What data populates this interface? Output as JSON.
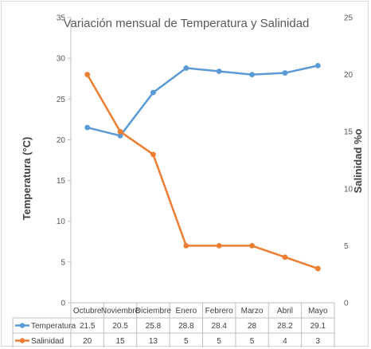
{
  "chart_data": {
    "type": "line",
    "title": "Variación mensual de Temperatura y Salinidad",
    "categories": [
      "Octubre",
      "Noviembre",
      "Diciembre",
      "Enero",
      "Febrero",
      "Marzo",
      "Abril",
      "Mayo"
    ],
    "ylabel": "Temperatura (°C)",
    "y2label": "Salinidad %o",
    "ylim": [
      0,
      35
    ],
    "yticks": [
      0,
      5,
      10,
      15,
      20,
      25,
      30,
      35
    ],
    "y2lim": [
      0,
      25
    ],
    "y2ticks": [
      0,
      5,
      10,
      15,
      20,
      25
    ],
    "grid": false,
    "legend": "data-table",
    "series": [
      {
        "name": "Temperatura",
        "axis": "left",
        "color": "#5b9bd5",
        "values": [
          21.5,
          20.5,
          25.8,
          28.8,
          28.4,
          28,
          28.2,
          29.1
        ],
        "labels": [
          "21.5",
          "20.5",
          "25.8",
          "28.8",
          "28.4",
          "28",
          "28.2",
          "29.1"
        ]
      },
      {
        "name": "Salinidad",
        "axis": "right",
        "color": "#ed7d31",
        "values": [
          20,
          15,
          13,
          5,
          5,
          5,
          4,
          3
        ],
        "labels": [
          "20",
          "15",
          "13",
          "5",
          "5",
          "5",
          "4",
          "3"
        ]
      }
    ]
  }
}
